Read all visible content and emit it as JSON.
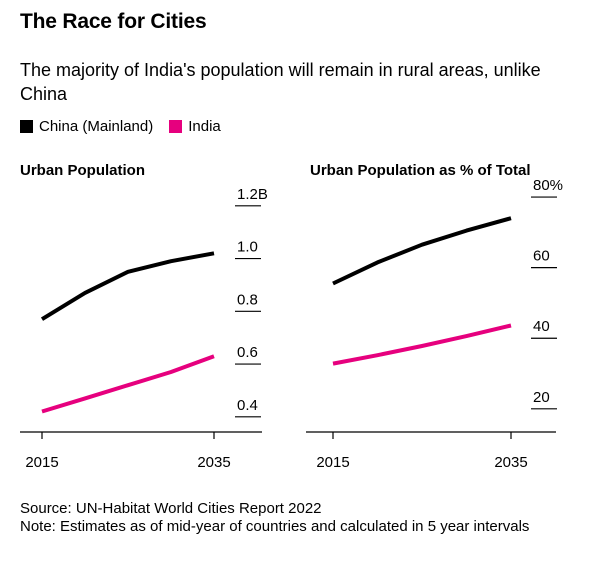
{
  "title": "The Race for Cities",
  "subtitle": "The majority of India's population will remain in rural areas, unlike China",
  "legend": [
    {
      "label": "China (Mainland)",
      "color": "#000000"
    },
    {
      "label": "India",
      "color": "#e6007e"
    }
  ],
  "chart_data": [
    {
      "type": "line",
      "title": "Urban Population",
      "x": [
        2015,
        2020,
        2025,
        2030,
        2035
      ],
      "x_tick_labels": [
        "2015",
        "2035"
      ],
      "y_ticks": [
        0.4,
        0.6,
        0.8,
        1.0,
        1.2
      ],
      "y_tick_labels": [
        "0.4",
        "0.6",
        "0.8",
        "1.0",
        "1.2B"
      ],
      "ylim": [
        0.35,
        1.26
      ],
      "xlabel": "",
      "ylabel": "",
      "series": [
        {
          "name": "China (Mainland)",
          "color": "#000000",
          "values": [
            0.77,
            0.87,
            0.95,
            0.99,
            1.02
          ]
        },
        {
          "name": "India",
          "color": "#e6007e",
          "values": [
            0.42,
            0.47,
            0.52,
            0.57,
            0.63
          ]
        }
      ]
    },
    {
      "type": "line",
      "title": "Urban Population as % of Total",
      "x": [
        2015,
        2020,
        2025,
        2030,
        2035
      ],
      "x_tick_labels": [
        "2015",
        "2035"
      ],
      "y_ticks": [
        20,
        40,
        60,
        80
      ],
      "y_tick_labels": [
        "20",
        "40",
        "60",
        "80%"
      ],
      "ylim": [
        14,
        82
      ],
      "xlabel": "",
      "ylabel": "",
      "series": [
        {
          "name": "China (Mainland)",
          "color": "#000000",
          "values": [
            55.5,
            61.5,
            66.5,
            70.5,
            74
          ]
        },
        {
          "name": "India",
          "color": "#e6007e",
          "values": [
            32.8,
            35.2,
            37.8,
            40.6,
            43.6
          ]
        }
      ]
    }
  ],
  "footer": {
    "source": "Source: UN-Habitat World Cities Report 2022",
    "note": "Note: Estimates as of mid-year of countries and calculated in 5 year intervals"
  }
}
